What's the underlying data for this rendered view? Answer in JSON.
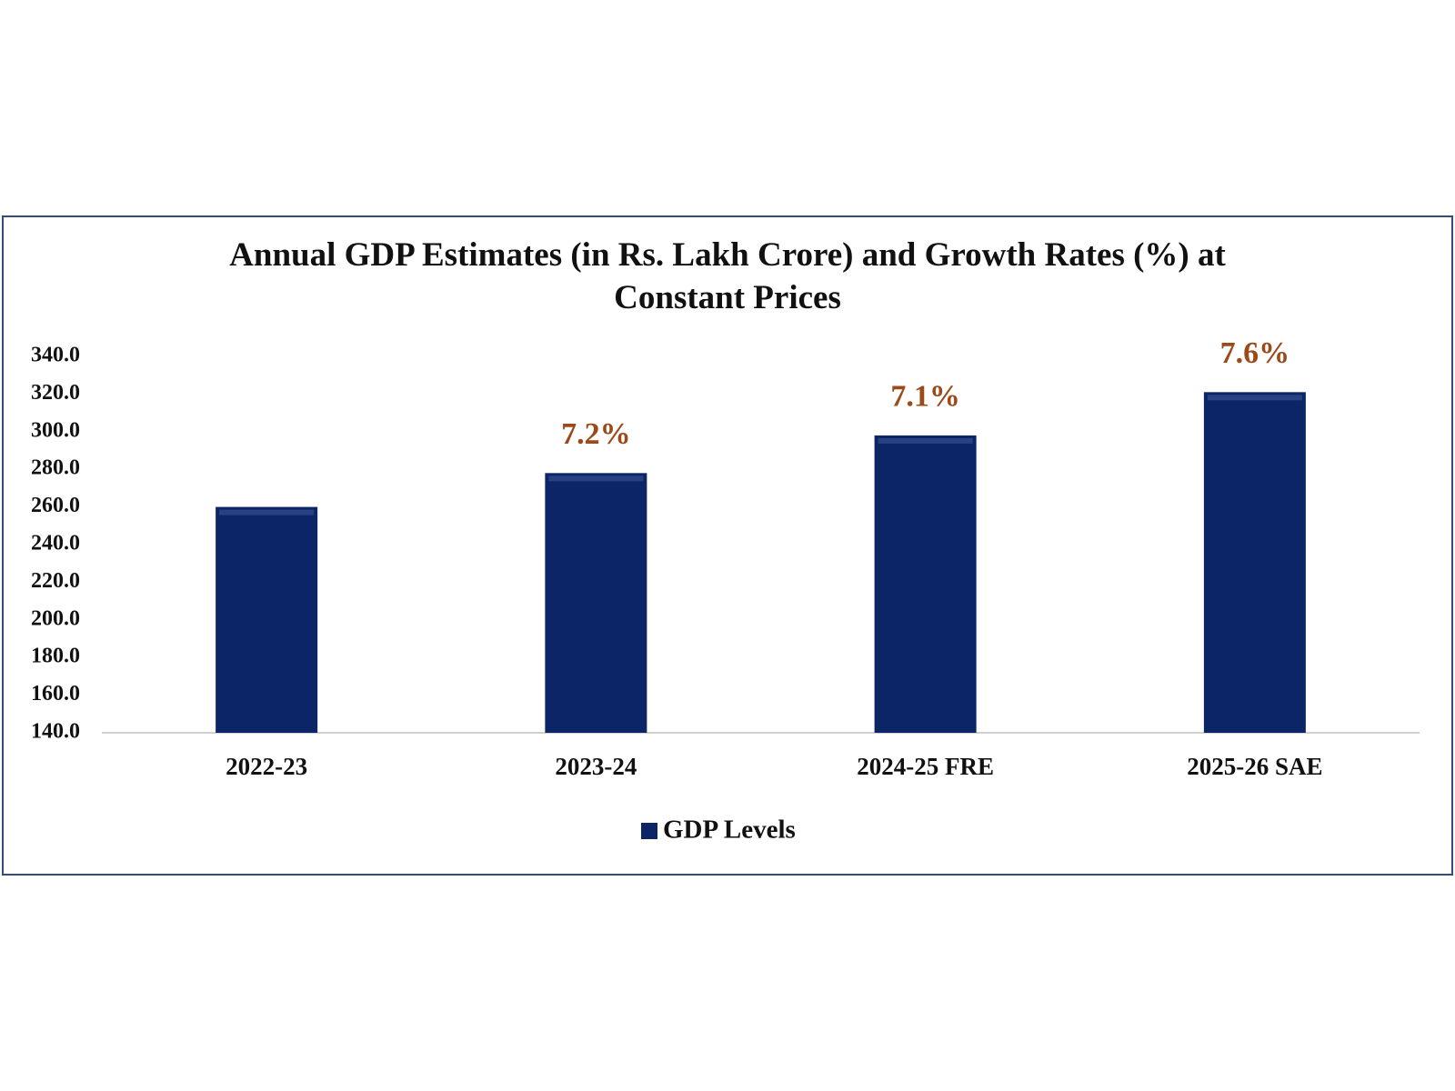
{
  "chart_data": {
    "type": "bar",
    "title": "Annual GDP Estimates (in Rs. Lakh Crore) and Growth Rates (%) at Constant Prices",
    "categories": [
      "2022-23",
      "2023-24",
      "2024-25 FRE",
      "2025-26 SAE"
    ],
    "series": [
      {
        "name": "GDP Levels",
        "color": "#0b2566",
        "values": [
          260,
          278,
          298,
          321
        ]
      }
    ],
    "growth_labels": [
      null,
      "7.2%",
      "7.1%",
      "7.6%"
    ],
    "growth_label_color": "#9c4a1a",
    "ylim": [
      140,
      340
    ],
    "yticks": [
      {
        "value": 140,
        "label": "140.0"
      },
      {
        "value": 160,
        "label": "160.0"
      },
      {
        "value": 180,
        "label": "180.0"
      },
      {
        "value": 200,
        "label": "200.0"
      },
      {
        "value": 220,
        "label": "220.0"
      },
      {
        "value": 240,
        "label": "240.0"
      },
      {
        "value": 260,
        "label": "260.0"
      },
      {
        "value": 280,
        "label": "280.0"
      },
      {
        "value": 300,
        "label": "300.0"
      },
      {
        "value": 320,
        "label": "320.0"
      },
      {
        "value": 340,
        "label": "340.0"
      }
    ],
    "grid": false
  }
}
